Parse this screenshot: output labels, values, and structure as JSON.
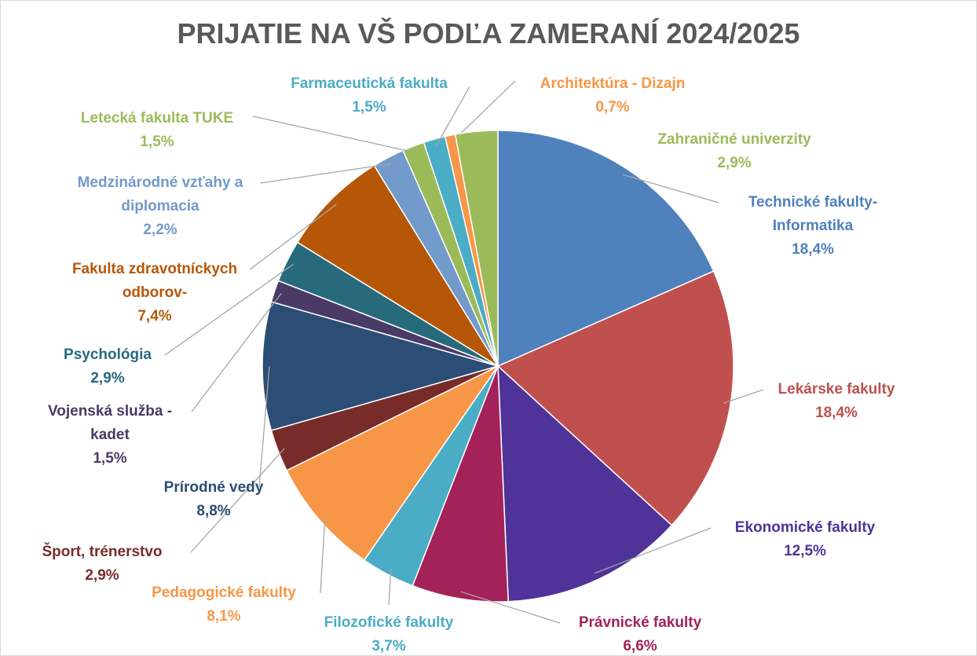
{
  "chart_data": {
    "type": "pie",
    "title": "PRIJATIE NA VŠ PODĽA ZAMERANÍ 2024/2025",
    "categories": [
      "Technické fakulty-Informatika",
      "Lekárske fakulty",
      "Ekonomické fakulty",
      "Právnické fakulty",
      "Filozofické fakulty",
      "Pedagogické fakulty",
      "Šport, trénerstvo",
      "Prírodné vedy",
      "Vojenská služba - kadet",
      "Psychológia",
      "Fakulta zdravotníckych odborov-",
      "Medzinárodné vzťahy a diplomacia",
      "Letecká fakulta TUKE",
      "Farmaceutická fakulta",
      "Architektúra - Dizajn",
      "Zahraničné univerzity"
    ],
    "values": [
      18.4,
      18.4,
      12.5,
      6.6,
      3.7,
      8.1,
      2.9,
      8.8,
      1.5,
      2.9,
      7.4,
      2.2,
      1.5,
      1.5,
      0.7,
      2.9
    ],
    "value_labels": [
      "18,4%",
      "18,4%",
      "12,5%",
      "6,6%",
      "3,7%",
      "8,1%",
      "2,9%",
      "8,8%",
      "1,5%",
      "2,9%",
      "7,4%",
      "2,2%",
      "1,5%",
      "1,5%",
      "0,7%",
      "2,9%"
    ],
    "colors": [
      "#4f81bd",
      "#c0504d",
      "#4f3399",
      "#a3225a",
      "#4bacc6",
      "#f79646",
      "#772c2a",
      "#2c4d75",
      "#4a3a66",
      "#276a7c",
      "#b65708",
      "#729aca",
      "#9bbb59",
      "#4bacc6",
      "#f79646",
      "#9bbb59"
    ]
  }
}
